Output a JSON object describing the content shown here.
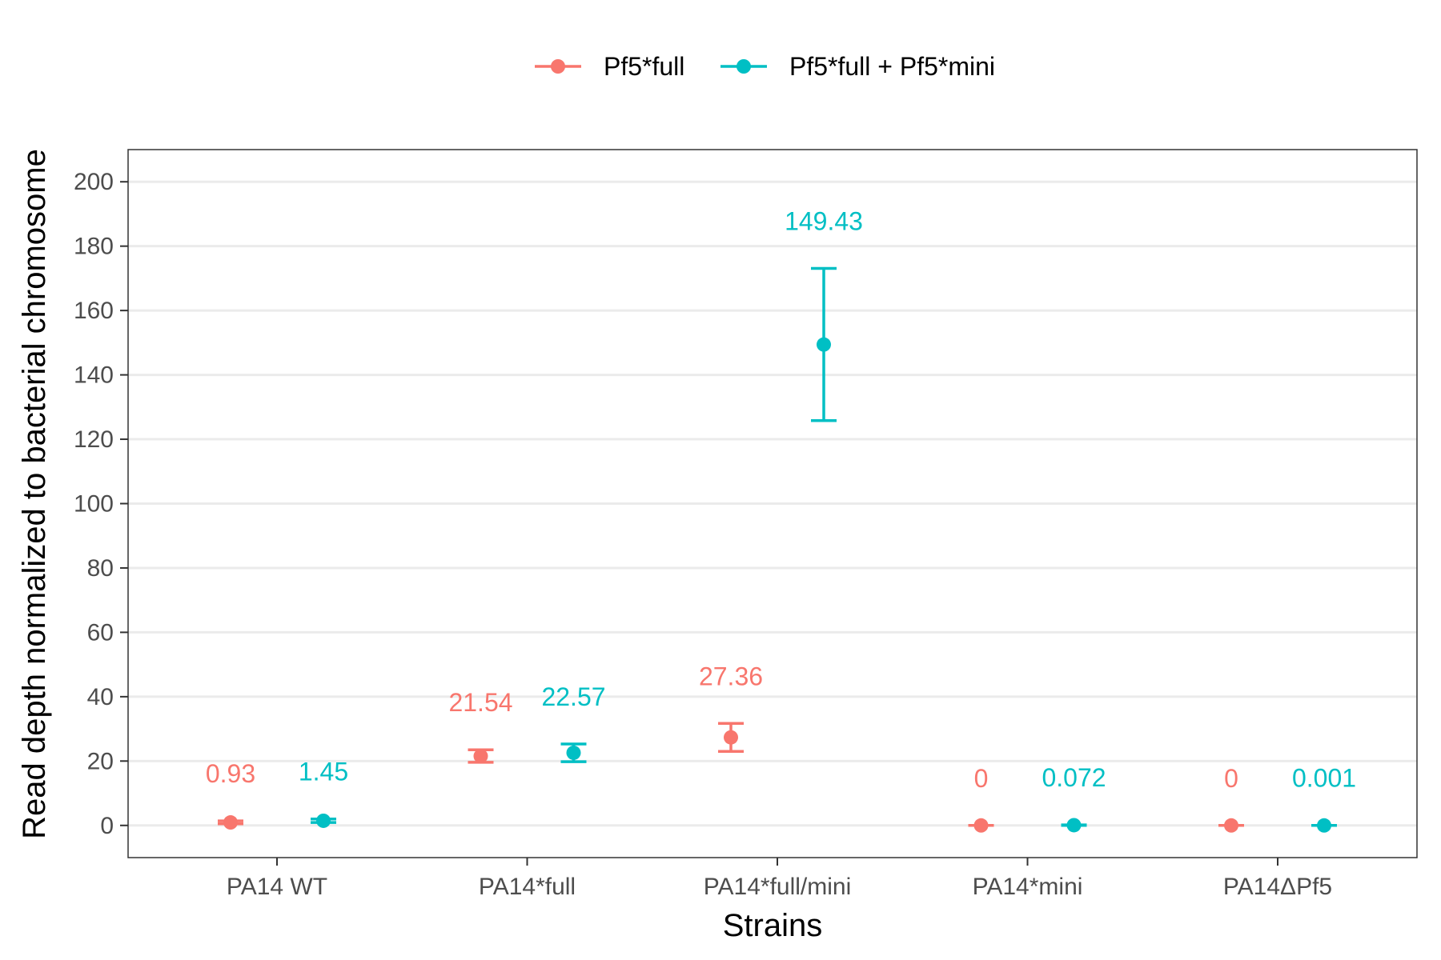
{
  "chart_data": {
    "type": "scatter",
    "title": "",
    "xlabel": "Strains",
    "ylabel": "Read depth normalized to bacterial chromosome",
    "categories": [
      "PA14 WT",
      "PA14*full",
      "PA14*full/mini",
      "PA14*mini",
      "PA14ΔPf5"
    ],
    "ylim": [
      -10,
      210
    ],
    "yticks": [
      0,
      20,
      40,
      60,
      80,
      100,
      120,
      140,
      160,
      180,
      200
    ],
    "grid": "horizontal",
    "legend_position": "top",
    "series": [
      {
        "name": "Pf5*full",
        "color": "#F8766D",
        "points": [
          {
            "category": "PA14 WT",
            "value": 0.93,
            "low": 0.5,
            "high": 1.4,
            "label": "0.93"
          },
          {
            "category": "PA14*full",
            "value": 21.54,
            "low": 19.6,
            "high": 23.5,
            "label": "21.54"
          },
          {
            "category": "PA14*full/mini",
            "value": 27.36,
            "low": 23.0,
            "high": 31.7,
            "label": "27.36"
          },
          {
            "category": "PA14*mini",
            "value": 0,
            "low": 0,
            "high": 0,
            "label": "0"
          },
          {
            "category": "PA14ΔPf5",
            "value": 0,
            "low": 0,
            "high": 0,
            "label": "0"
          }
        ]
      },
      {
        "name": "Pf5*full + Pf5*mini",
        "color": "#00BFC4",
        "points": [
          {
            "category": "PA14 WT",
            "value": 1.45,
            "low": 0.9,
            "high": 2.0,
            "label": "1.45"
          },
          {
            "category": "PA14*full",
            "value": 22.57,
            "low": 19.8,
            "high": 25.3,
            "label": "22.57"
          },
          {
            "category": "PA14*full/mini",
            "value": 149.43,
            "low": 125.8,
            "high": 173.1,
            "label": "149.43"
          },
          {
            "category": "PA14*mini",
            "value": 0.072,
            "low": 0.0,
            "high": 0.15,
            "label": "0.072"
          },
          {
            "category": "PA14ΔPf5",
            "value": 0.001,
            "low": 0.0,
            "high": 0.01,
            "label": "0.001"
          }
        ]
      }
    ]
  }
}
